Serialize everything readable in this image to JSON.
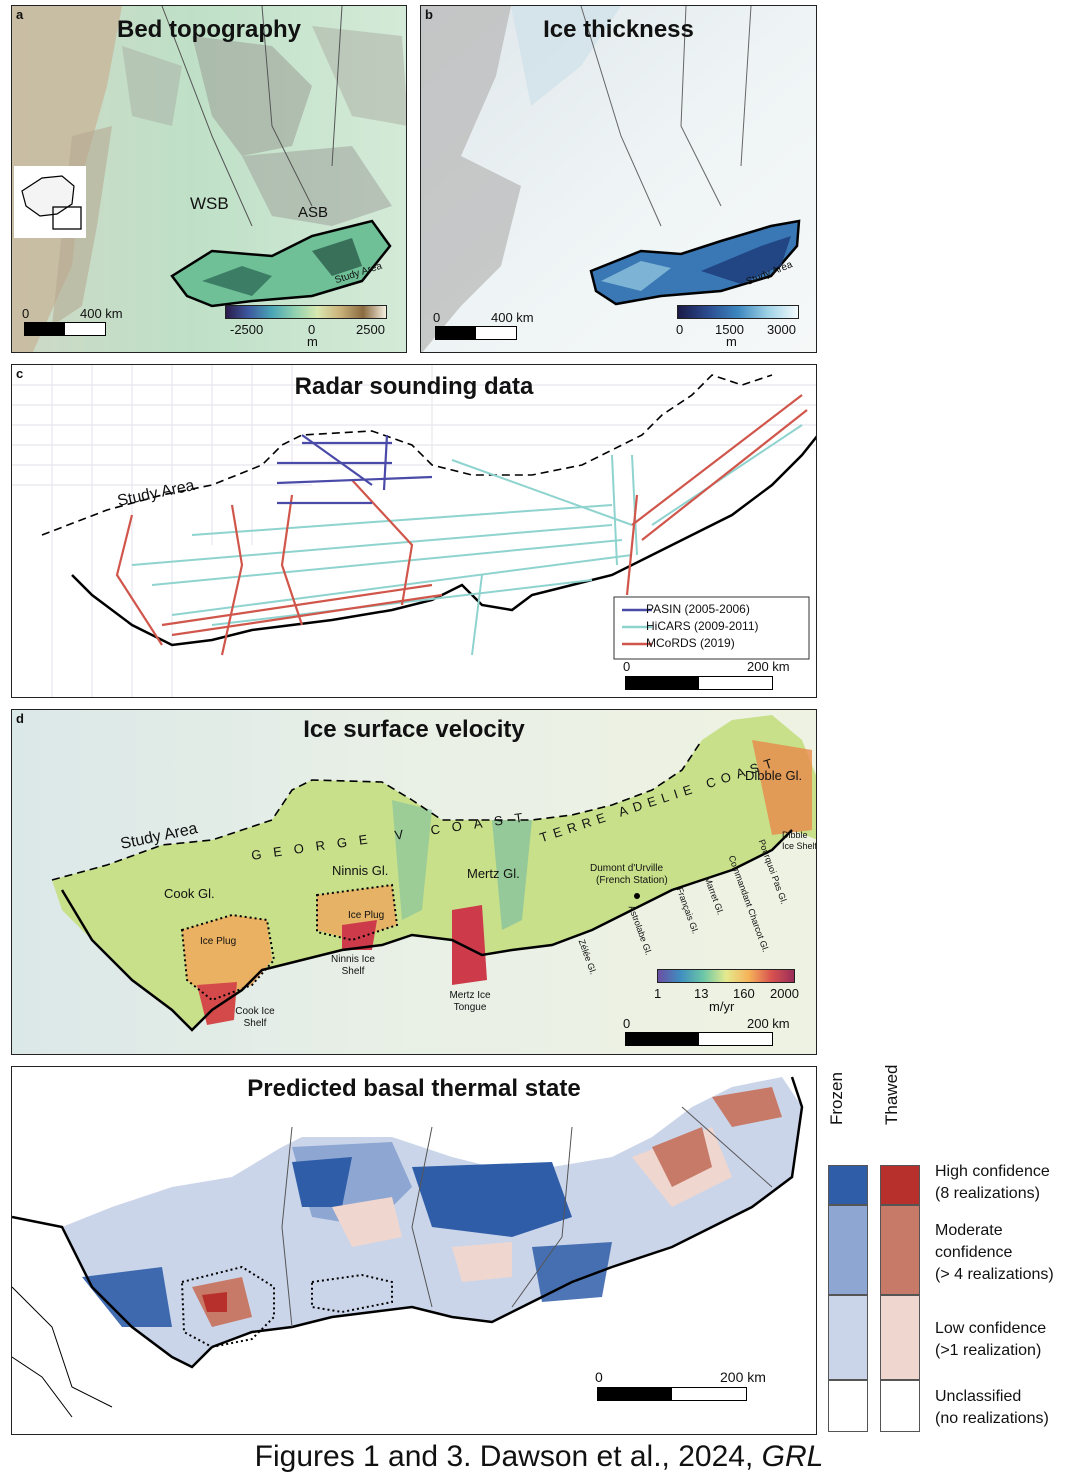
{
  "panel_a": {
    "label": "a",
    "title": "Bed topography",
    "labels": {
      "wsb": "WSB",
      "asb": "ASB",
      "study_area": "Study Area"
    },
    "scalebar": {
      "zero": "0",
      "distance": "400 km"
    },
    "colorbar": {
      "ticks": [
        "-2500",
        "0",
        "2500"
      ],
      "unit": "m"
    }
  },
  "panel_b": {
    "label": "b",
    "title": "Ice thickness",
    "labels": {
      "study_area": "Study Area"
    },
    "scalebar": {
      "zero": "0",
      "distance": "400 km"
    },
    "colorbar": {
      "ticks": [
        "0",
        "1500",
        "3000"
      ],
      "unit": "m"
    }
  },
  "panel_c": {
    "label": "c",
    "title": "Radar sounding data",
    "labels": {
      "study_area": "Study Area"
    },
    "legend": [
      {
        "name": "PASIN (2005-2006)",
        "color": "#4a4aa8"
      },
      {
        "name": "HiCARS (2009-2011)",
        "color": "#8fd3cf"
      },
      {
        "name": "MCoRDS (2019)",
        "color": "#d0564b"
      }
    ],
    "scalebar": {
      "zero": "0",
      "distance": "200 km"
    }
  },
  "panel_d": {
    "label": "d",
    "title": "Ice surface velocity",
    "labels": {
      "study_area": "Study Area",
      "george_v_coast": "GEORGE V COAST",
      "terre_adelie_coast": "TERRE ADELIE COAST",
      "cook_gl": "Cook Gl.",
      "ninnis_gl": "Ninnis Gl.",
      "mertz_gl": "Mertz Gl.",
      "dibble_gl": "Dibble Gl.",
      "dibble_ice_shelf": "Dibble Ice Shelf",
      "ice_plug_1": "Ice Plug",
      "ice_plug_2": "Ice Plug",
      "cook_ice_shelf": "Cook Ice Shelf",
      "ninnis_ice_shelf": "Ninnis Ice Shelf",
      "mertz_ice_tongue": "Mertz Ice Tongue",
      "dumont": "Dumont d'Urville",
      "french_station": "(French Station)",
      "zelee_gl": "Zélée Gl.",
      "astrolabe_gl": "Astrolabe Gl.",
      "francais_gl": "Français Gl.",
      "marret_gl": "Marret Gl.",
      "commandant_gl": "Commandant Charcot Gl.",
      "pourquoi_gl": "Pourquoi Pas Gl."
    },
    "colorbar": {
      "ticks": [
        "1",
        "13",
        "160",
        "2000"
      ],
      "unit": "m/yr"
    },
    "scalebar": {
      "zero": "0",
      "distance": "200 km"
    }
  },
  "panel_e": {
    "title": "Predicted basal thermal state",
    "scalebar": {
      "zero": "0",
      "distance": "200 km"
    },
    "legend": {
      "frozen_header": "Frozen",
      "thawed_header": "Thawed",
      "rows": [
        {
          "label_line1": "High confidence",
          "label_line2": "(8 realizations)",
          "frozen_color": "#2f5da8",
          "thawed_color": "#b8302b"
        },
        {
          "label_line1": "Moderate",
          "label_line2": "confidence",
          "label_line3": "(> 4 realizations)",
          "frozen_color": "#8da6d2",
          "thawed_color": "#c77a67"
        },
        {
          "label_line1": "Low confidence",
          "label_line2": "(>1 realization)",
          "frozen_color": "#cbd5ea",
          "thawed_color": "#efd6cf"
        },
        {
          "label_line1": "Unclassified",
          "label_line2": "(no realizations)",
          "frozen_color": "#ffffff",
          "thawed_color": "#ffffff"
        }
      ]
    }
  },
  "caption": {
    "text": "Figures 1 and 3. Dawson et al., 2024, ",
    "journal": "GRL"
  }
}
